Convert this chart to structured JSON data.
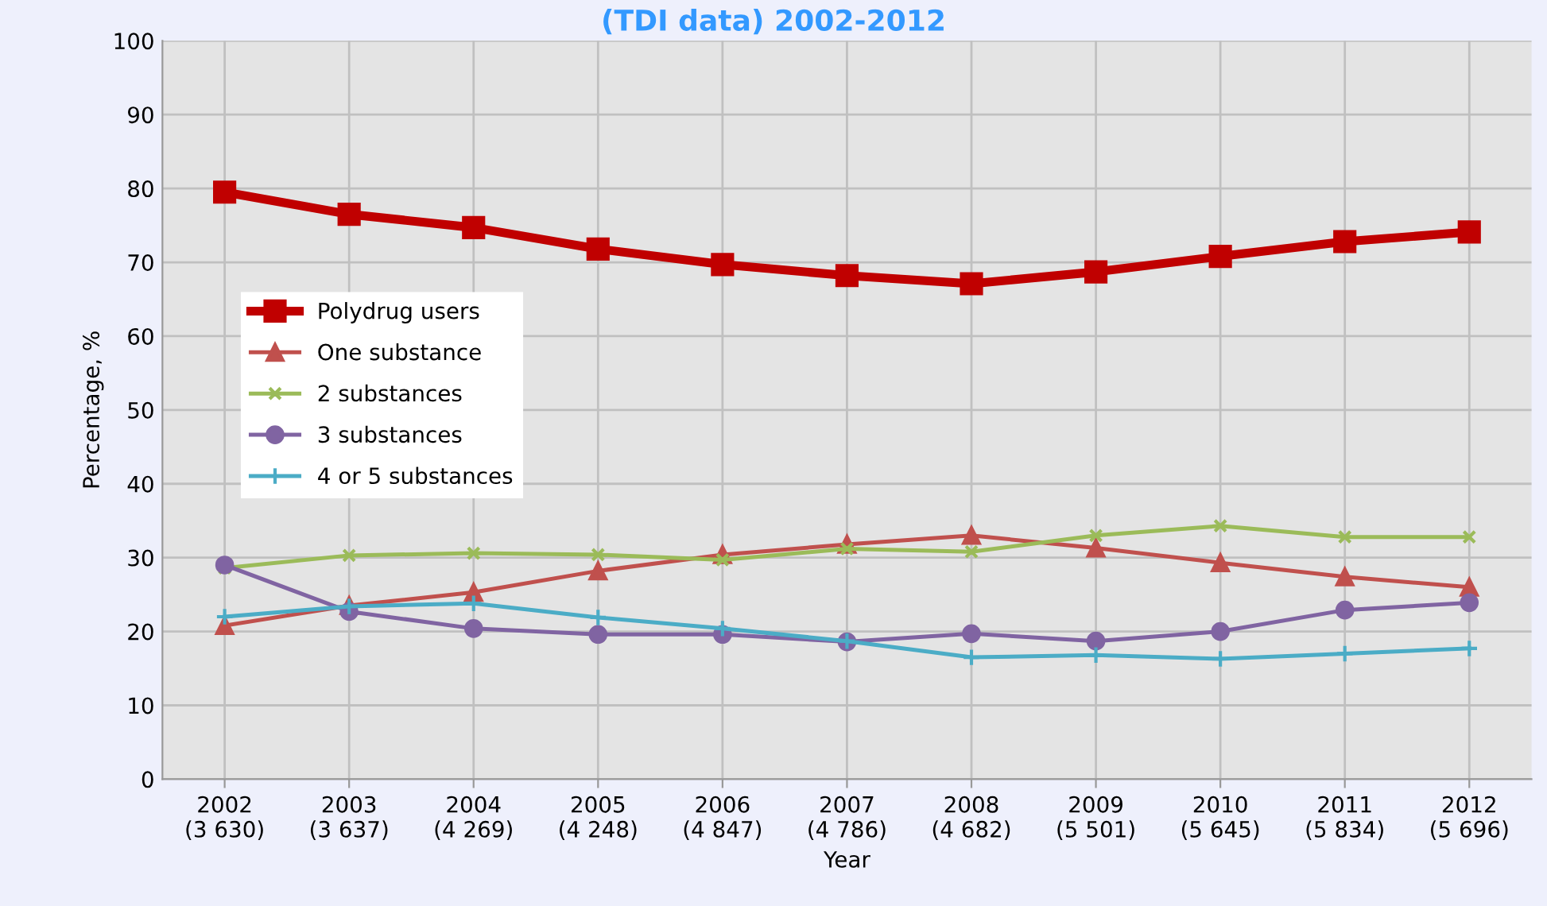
{
  "chart_data": {
    "type": "line",
    "title": "(TDI data) 2002-2012",
    "xlabel": "Year",
    "ylabel": "Percentage, %",
    "categories": [
      "2002\n(3 630)",
      "2003\n(3 637)",
      "2004\n(4 269)",
      "2005\n(4 248)",
      "2006\n(4 847)",
      "2007\n(4 786)",
      "2008\n(4 682)",
      "2009\n(5 501)",
      "2010\n(5 645)",
      "2011\n(5 834)",
      "2012\n(5 696)"
    ],
    "series": [
      {
        "name": "Polydrug users",
        "color": "#c00000",
        "marker": "square",
        "values": [
          79.5,
          76.5,
          74.7,
          71.8,
          69.7,
          68.2,
          67.1,
          68.7,
          70.8,
          72.8,
          74.1
        ]
      },
      {
        "name": "One substance",
        "color": "#c0504d",
        "marker": "triangle",
        "values": [
          20.8,
          23.5,
          25.3,
          28.2,
          30.4,
          31.8,
          33.0,
          31.3,
          29.3,
          27.4,
          26.0
        ]
      },
      {
        "name": "2 substances",
        "color": "#9bbb59",
        "marker": "cross",
        "values": [
          28.6,
          30.3,
          30.6,
          30.4,
          29.7,
          31.2,
          30.8,
          33.0,
          34.3,
          32.8,
          32.8
        ]
      },
      {
        "name": "3 substances",
        "color": "#8064a2",
        "marker": "circle",
        "values": [
          29.0,
          22.7,
          20.4,
          19.6,
          19.6,
          18.6,
          19.7,
          18.7,
          20.0,
          22.9,
          23.9
        ]
      },
      {
        "name": "4 or 5 substances",
        "color": "#4bacc6",
        "marker": "cross",
        "values": [
          22.0,
          23.4,
          23.8,
          21.9,
          20.4,
          18.7,
          16.5,
          16.8,
          16.3,
          17.0,
          17.7
        ]
      }
    ],
    "ylim": [
      0,
      100
    ],
    "yticks": [
      0,
      10,
      20,
      30,
      40,
      50,
      60,
      70,
      80,
      90,
      100
    ],
    "grid": true,
    "legend": "left",
    "line_style": "solid"
  }
}
